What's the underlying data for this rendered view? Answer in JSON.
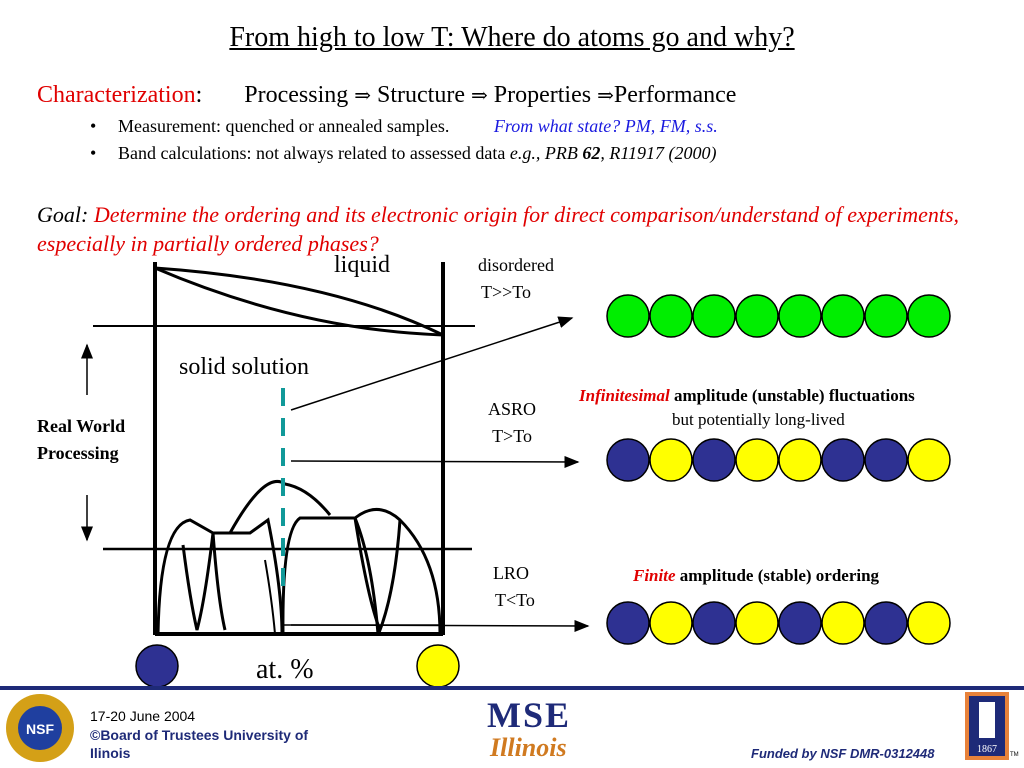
{
  "title": "From high to  low T: Where do atoms go and why?",
  "characterization": {
    "label": "Characterization",
    "colon": ":",
    "processing": "Processing",
    "structure": "Structure",
    "properties": "Properties",
    "performance": "Performance",
    "arrow": "⇒"
  },
  "bullets": [
    {
      "text": "Measurement:  quenched or annealed samples.",
      "note": "From what state? PM, FM, s.s."
    },
    {
      "text": "Band calculations:  not always related to assessed data ",
      "note_pre": "e.g., PRB ",
      "note_bold": "62",
      "note_post": ", R11917 (2000)"
    }
  ],
  "goal": {
    "label": "Goal:",
    "text": "Determine the ordering and its electronic origin for direct comparison/understand of experiments, especially in partially ordered phases?"
  },
  "diagram": {
    "liquid": "liquid",
    "solid_solution": "solid solution",
    "at_percent": "at. %",
    "real_world_line1": "Real World",
    "real_world_line2": "Processing",
    "disordered_line1": "disordered",
    "disordered_line2": "T>>To",
    "asro_line1": "ASRO",
    "asro_line2": "T>To",
    "lro_line1": "LRO",
    "lro_line2": "T<To",
    "asro_desc_italic": "Infinitesimal",
    "asro_desc_bold": " amplitude (unstable) fluctuations",
    "asro_desc_line2": "but potentially long-lived",
    "lro_desc_italic": "Finite",
    "lro_desc_bold": " amplitude ",
    "lro_desc_paren": "(stable) ordering",
    "colors": {
      "green": "#00ee00",
      "blue": "#2e3192",
      "yellow": "#ffff00",
      "teal": "#119999"
    },
    "chains": [
      [
        "green",
        "green",
        "green",
        "green",
        "green",
        "green",
        "green",
        "green"
      ],
      [
        "blue",
        "yellow",
        "blue",
        "yellow",
        "yellow",
        "blue",
        "blue",
        "yellow"
      ],
      [
        "blue",
        "yellow",
        "blue",
        "yellow",
        "blue",
        "yellow",
        "blue",
        "yellow"
      ]
    ],
    "end_atoms": [
      "blue",
      "yellow"
    ]
  },
  "footer": {
    "date": "17-20 June 2004",
    "copyright": "©Board of Trustees University of",
    "copyright2": "Ilinois",
    "funded": "Funded by NSF DMR-0312448",
    "nsf_logo": "NSF",
    "mse_logo": "MSE",
    "illinois_logo": "Illinois",
    "uiuc_year": "1867",
    "tm": "TM"
  }
}
